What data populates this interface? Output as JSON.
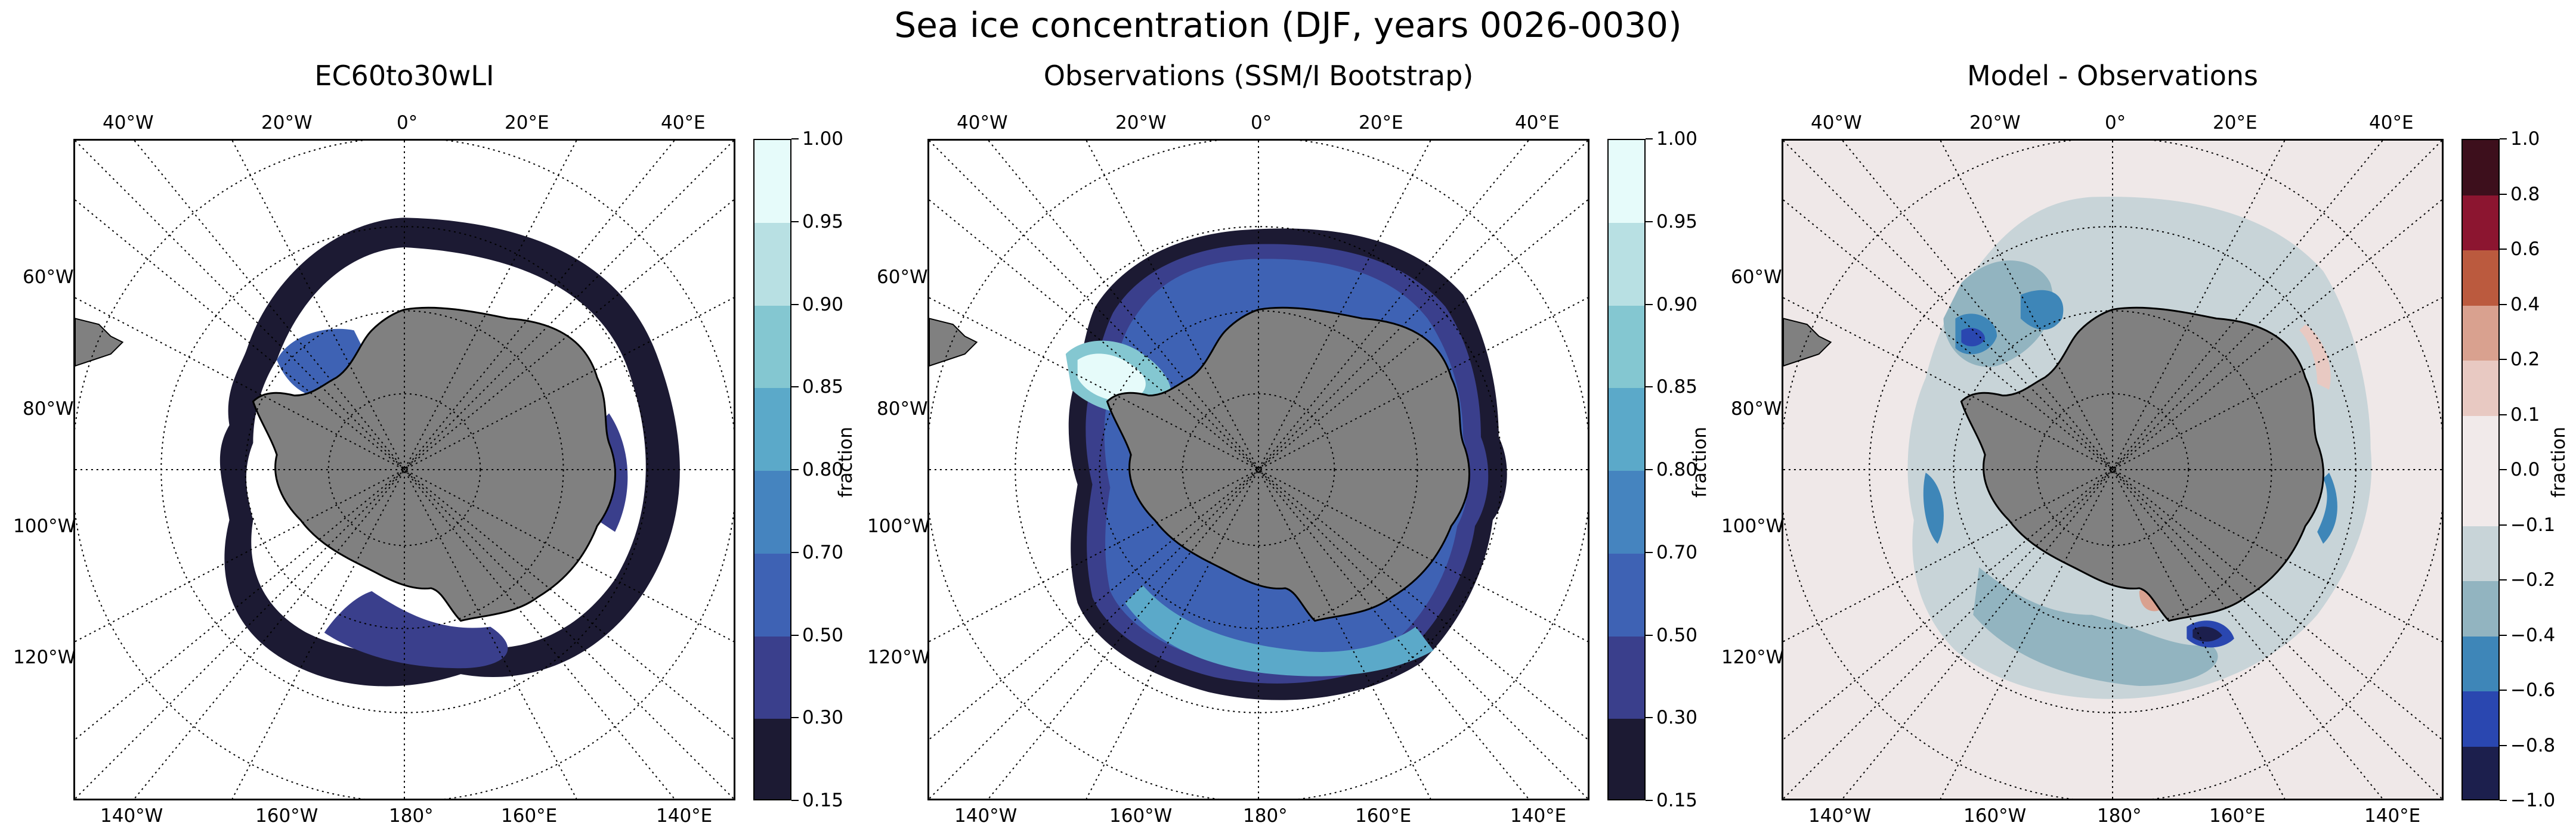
{
  "figure": {
    "title": "Sea ice concentration (DJF, years 0026-0030)"
  },
  "panels": [
    {
      "title": "EC60to30wLI",
      "top_lon_labels": [
        "40°W",
        "20°W",
        "0°",
        "20°E",
        "40°E"
      ],
      "bottom_lon_labels": [
        "140°W",
        "160°W",
        "180°",
        "160°E",
        "140°E"
      ],
      "lat_side_labels": [
        "60°W",
        "80°W",
        "100°W",
        "120°W"
      ],
      "colorbar": {
        "label": "fraction",
        "ticks": [
          "1.00",
          "0.95",
          "0.90",
          "0.85",
          "0.80",
          "0.70",
          "0.50",
          "0.30",
          "0.15"
        ],
        "colors": [
          "#e6fbfa",
          "#b8e0e3",
          "#84c7d1",
          "#5ba9c9",
          "#4584bf",
          "#3e62b4",
          "#3a3f8c",
          "#1c1a33"
        ]
      }
    },
    {
      "title": "Observations (SSM/I Bootstrap)",
      "top_lon_labels": [
        "40°W",
        "20°W",
        "0°",
        "20°E",
        "40°E"
      ],
      "bottom_lon_labels": [
        "140°W",
        "160°W",
        "180°",
        "160°E",
        "140°E"
      ],
      "lat_side_labels": [
        "60°W",
        "80°W",
        "100°W",
        "120°W"
      ],
      "colorbar": {
        "label": "fraction",
        "ticks": [
          "1.00",
          "0.95",
          "0.90",
          "0.85",
          "0.80",
          "0.70",
          "0.50",
          "0.30",
          "0.15"
        ],
        "colors": [
          "#e6fbfa",
          "#b8e0e3",
          "#84c7d1",
          "#5ba9c9",
          "#4584bf",
          "#3e62b4",
          "#3a3f8c",
          "#1c1a33"
        ]
      }
    },
    {
      "title": "Model - Observations",
      "top_lon_labels": [
        "40°W",
        "20°W",
        "0°",
        "20°E",
        "40°E"
      ],
      "bottom_lon_labels": [
        "140°W",
        "160°W",
        "180°",
        "160°E",
        "140°E"
      ],
      "lat_side_labels": [
        "60°W",
        "80°W",
        "100°W",
        "120°W"
      ],
      "colorbar": {
        "label": "fraction",
        "ticks": [
          "1.0",
          "0.8",
          "0.6",
          "0.4",
          "0.2",
          "0.1",
          "0.0",
          "−0.1",
          "−0.2",
          "−0.4",
          "−0.6",
          "−0.8",
          "−1.0"
        ],
        "colors": [
          "#3d0f1c",
          "#8c1530",
          "#bb5a3e",
          "#d9a18f",
          "#e8c9c2",
          "#f1eaea",
          "#f1eaea",
          "#c8d4d8",
          "#92b4c0",
          "#3e86b8",
          "#2a47b0",
          "#1c1f4d"
        ]
      }
    }
  ],
  "style": {
    "land": "#808080",
    "ocean_nan": "#ffffff",
    "diff_background": "#efe8e8"
  }
}
